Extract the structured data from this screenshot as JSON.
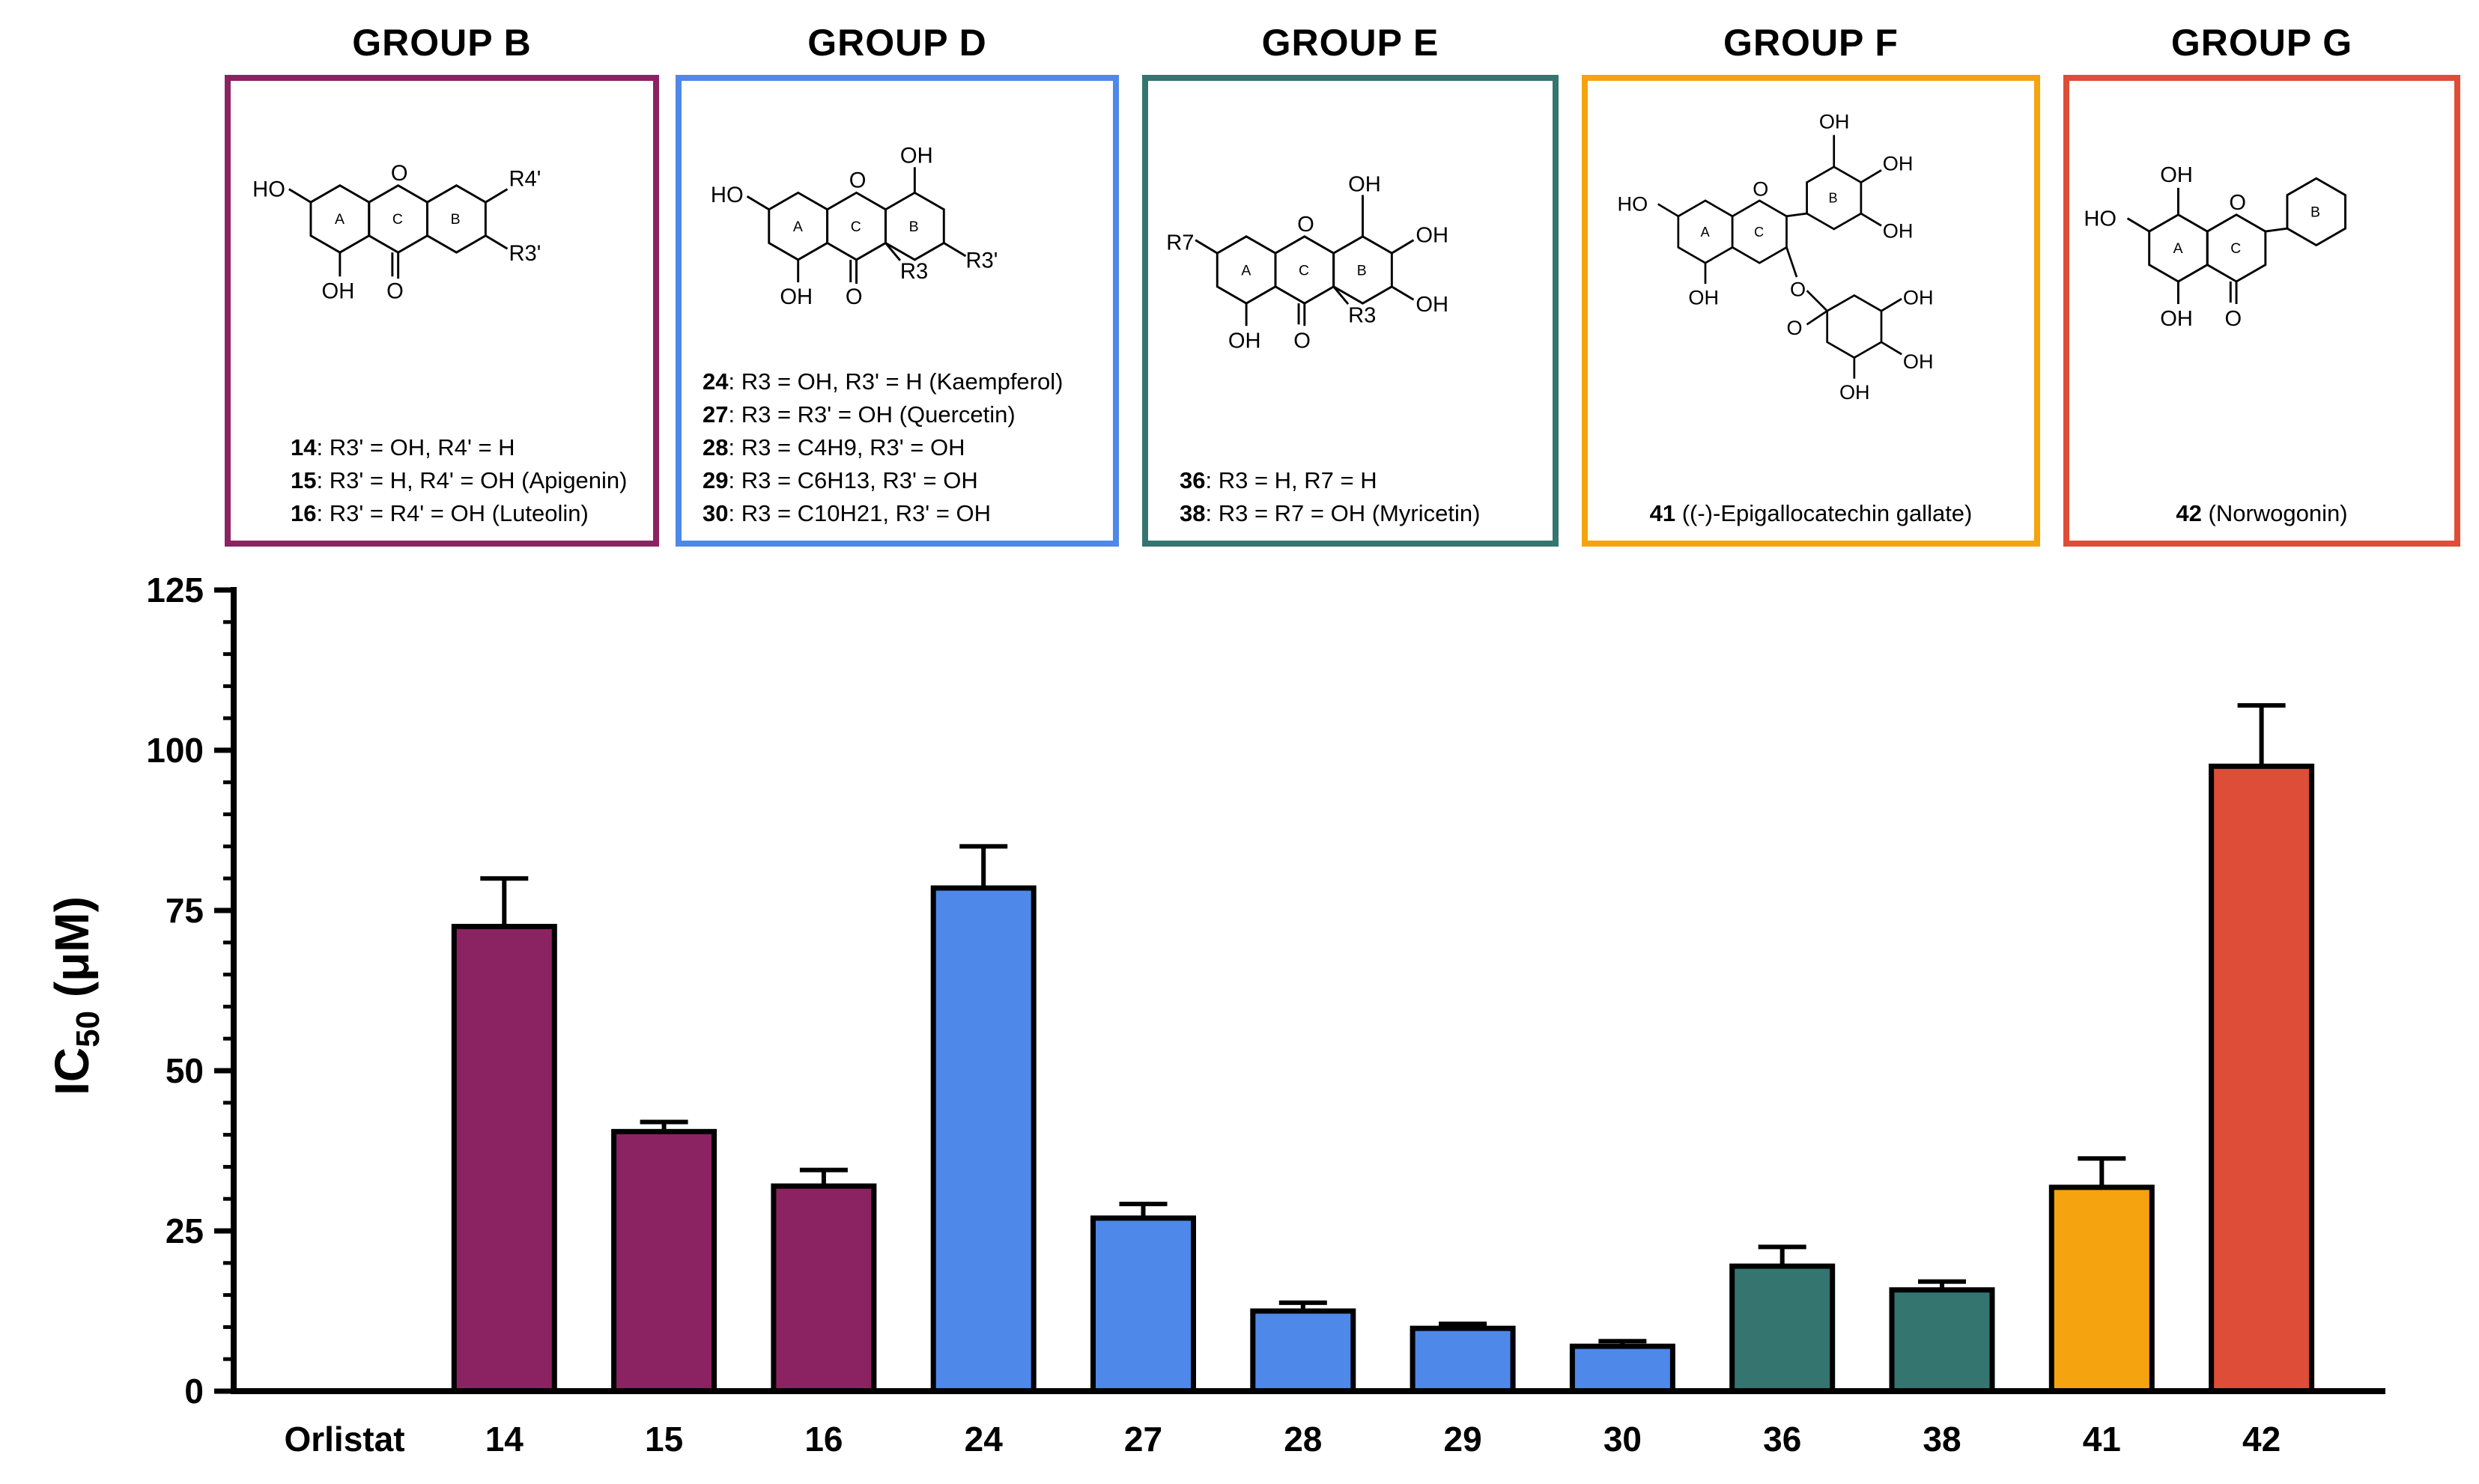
{
  "groups": [
    {
      "title": "GROUP B",
      "color": "#8B2362",
      "legend": [
        {
          "id": "14",
          "text": ": R3' = OH, R4' = H"
        },
        {
          "id": "15",
          "text": ": R3' = H, R4' = OH (Apigenin)"
        },
        {
          "id": "16",
          "text": ": R3' = R4' = OH (Luteolin)"
        }
      ]
    },
    {
      "title": "GROUP D",
      "color": "#4E88E9",
      "legend": [
        {
          "id": "24",
          "text": ": R3 = OH, R3' = H (Kaempferol)"
        },
        {
          "id": "27",
          "text": ": R3 = R3' = OH (Quercetin)"
        },
        {
          "id": "28",
          "text": ": R3 = C4H9, R3' = OH"
        },
        {
          "id": "29",
          "text": ": R3 = C6H13, R3' = OH"
        },
        {
          "id": "30",
          "text": ": R3 = C10H21, R3' = OH"
        }
      ]
    },
    {
      "title": "GROUP E",
      "color": "#347570",
      "legend": [
        {
          "id": "36",
          "text": ": R3 = H, R7 = H"
        },
        {
          "id": "38",
          "text": ": R3 = R7 = OH (Myricetin)"
        }
      ]
    },
    {
      "title": "GROUP F",
      "color": "#F5A30E",
      "legend": [
        {
          "id": "41",
          "text": " ((-)-Epigallocatechin gallate)"
        }
      ]
    },
    {
      "title": "GROUP G",
      "color": "#DE4D37",
      "legend": [
        {
          "id": "42",
          "text": " (Norwogonin)"
        }
      ]
    }
  ],
  "structure_labels": {
    "oh": "OH",
    "ho": "HO",
    "o": "O",
    "r4p": "R4'",
    "r3p": "R3'",
    "r3": "R3",
    "r7": "R7",
    "ring_a": "A",
    "ring_b": "B",
    "ring_c": "C"
  },
  "chart_data": {
    "type": "bar",
    "ylabel_main": "IC",
    "ylabel_sub": "50",
    "ylabel_unit": " (μM)",
    "ylim": [
      0,
      125
    ],
    "yticks": [
      "0",
      "25",
      "50",
      "75",
      "100",
      "125"
    ],
    "categories": [
      "Orlistat",
      "14",
      "15",
      "16",
      "24",
      "27",
      "28",
      "29",
      "30",
      "36",
      "38",
      "41",
      "42"
    ],
    "values": [
      0,
      72.5,
      40.5,
      32,
      78.5,
      27,
      12.5,
      9.8,
      7.0,
      19.5,
      15.8,
      31.8,
      97.5
    ],
    "errors": [
      0,
      7.5,
      1.5,
      2.5,
      6.5,
      2.2,
      1.3,
      0.7,
      0.8,
      3.0,
      1.3,
      4.5,
      9.5
    ],
    "colors": [
      "#ffffff",
      "#8B2362",
      "#8B2362",
      "#8B2362",
      "#4E88E9",
      "#4E88E9",
      "#4E88E9",
      "#4E88E9",
      "#4E88E9",
      "#347570",
      "#347570",
      "#F5A30E",
      "#DE4D37"
    ]
  }
}
